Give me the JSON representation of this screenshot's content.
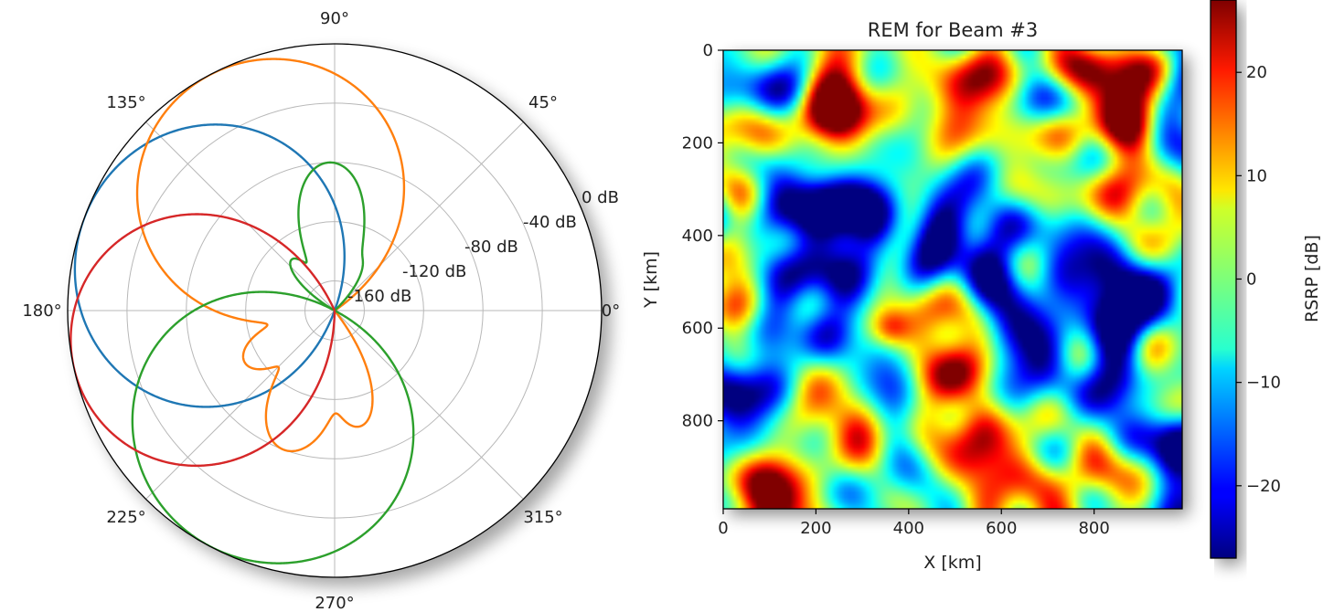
{
  "chart_data": [
    {
      "type": "polar-line",
      "title": "",
      "angle_tick_labels": [
        "0°",
        "45°",
        "90°",
        "135°",
        "180°",
        "225°",
        "270°",
        "315°"
      ],
      "radial_tick_labels": [
        "-160 dB",
        "-120 dB",
        "-80 dB",
        "-40 dB",
        "0 dB"
      ],
      "radial_range_db": [
        -180,
        0
      ],
      "grid": true,
      "series": [
        {
          "color": "#1f77b4",
          "lobes": [
            {
              "angle_deg": 160,
              "peak_db": 0,
              "width_deg": 14
            },
            {
              "angle_deg": 175,
              "peak_db": -140,
              "width_deg": 7
            }
          ]
        },
        {
          "color": "#ff7f0e",
          "lobes": [
            {
              "angle_deg": 118,
              "peak_db": 0,
              "width_deg": 13
            },
            {
              "angle_deg": 142,
              "peak_db": -95,
              "width_deg": 6
            },
            {
              "angle_deg": 100,
              "peak_db": -120,
              "width_deg": 5
            },
            {
              "angle_deg": 80,
              "peak_db": -130,
              "width_deg": 6
            },
            {
              "angle_deg": 210,
              "peak_db": -110,
              "width_deg": 7
            },
            {
              "angle_deg": 250,
              "peak_db": -80,
              "width_deg": 7
            },
            {
              "angle_deg": 282,
              "peak_db": -100,
              "width_deg": 6
            }
          ]
        },
        {
          "color": "#2ca02c",
          "lobes": [
            {
              "angle_deg": 242,
              "peak_db": 0,
              "width_deg": 14
            },
            {
              "angle_deg": 92,
              "peak_db": -80,
              "width_deg": 7
            },
            {
              "angle_deg": 65,
              "peak_db": -140,
              "width_deg": 7
            },
            {
              "angle_deg": 130,
              "peak_db": -135,
              "width_deg": 6
            },
            {
              "angle_deg": 205,
              "peak_db": -100,
              "width_deg": 6
            },
            {
              "angle_deg": 225,
              "peak_db": -110,
              "width_deg": 5
            },
            {
              "angle_deg": 190,
              "peak_db": -140,
              "width_deg": 6
            }
          ]
        },
        {
          "color": "#d62728",
          "lobes": [
            {
              "angle_deg": 192,
              "peak_db": 0,
              "width_deg": 12
            },
            {
              "angle_deg": 170,
              "peak_db": -135,
              "width_deg": 6
            }
          ]
        }
      ]
    },
    {
      "type": "heatmap",
      "title": "REM for Beam #3",
      "xlabel": "X [km]",
      "ylabel": "Y [km]",
      "colorbar_label": "RSRP [dB]",
      "xlim": [
        0,
        990
      ],
      "ylim": [
        990,
        0
      ],
      "x_ticks": [
        0,
        200,
        400,
        600,
        800
      ],
      "y_ticks": [
        0,
        200,
        400,
        600,
        800
      ],
      "colorbar_ticks": [
        20,
        10,
        0,
        -10,
        -20
      ],
      "colorbar_tick_labels": [
        "20",
        "10",
        "0",
        "−10",
        "−20"
      ],
      "value_range": [
        -27,
        27
      ],
      "colormap": "jet",
      "features": [
        {
          "x": 570,
          "y": 400,
          "value": -28,
          "radius": 90
        },
        {
          "x": 880,
          "y": 550,
          "value": -22,
          "radius": 55
        },
        {
          "x": 620,
          "y": 420,
          "value": -18,
          "radius": 150
        },
        {
          "x": 230,
          "y": 530,
          "value": -16,
          "radius": 80
        },
        {
          "x": 320,
          "y": 390,
          "value": -14,
          "radius": 70
        },
        {
          "x": 390,
          "y": 900,
          "value": -14,
          "radius": 70
        },
        {
          "x": 230,
          "y": 880,
          "value": -14,
          "radius": 55
        },
        {
          "x": 820,
          "y": 700,
          "value": -16,
          "radius": 90
        },
        {
          "x": 870,
          "y": 800,
          "value": -12,
          "radius": 70
        },
        {
          "x": 130,
          "y": 70,
          "value": -12,
          "radius": 60
        },
        {
          "x": 470,
          "y": 320,
          "value": -12,
          "radius": 60
        },
        {
          "x": 940,
          "y": 400,
          "value": -10,
          "radius": 60
        },
        {
          "x": 890,
          "y": 60,
          "value": 24,
          "radius": 45
        },
        {
          "x": 860,
          "y": 100,
          "value": 14,
          "radius": 90
        },
        {
          "x": 80,
          "y": 200,
          "value": 22,
          "radius": 40
        },
        {
          "x": 50,
          "y": 330,
          "value": 20,
          "radius": 50
        },
        {
          "x": 15,
          "y": 560,
          "value": 22,
          "radius": 40
        },
        {
          "x": 100,
          "y": 960,
          "value": 22,
          "radius": 50
        },
        {
          "x": 360,
          "y": 600,
          "value": 22,
          "radius": 30
        },
        {
          "x": 550,
          "y": 680,
          "value": 22,
          "radius": 50
        },
        {
          "x": 510,
          "y": 650,
          "value": 14,
          "radius": 110
        },
        {
          "x": 340,
          "y": 100,
          "value": 16,
          "radius": 60
        },
        {
          "x": 470,
          "y": 160,
          "value": 14,
          "radius": 50
        },
        {
          "x": 620,
          "y": 70,
          "value": 12,
          "radius": 80
        },
        {
          "x": 880,
          "y": 250,
          "value": 12,
          "radius": 55
        },
        {
          "x": 960,
          "y": 300,
          "value": 10,
          "radius": 50
        },
        {
          "x": 250,
          "y": 160,
          "value": 10,
          "radius": 60
        },
        {
          "x": 920,
          "y": 970,
          "value": 12,
          "radius": 40
        },
        {
          "x": 540,
          "y": 960,
          "value": 6,
          "radius": 80
        }
      ]
    }
  ]
}
